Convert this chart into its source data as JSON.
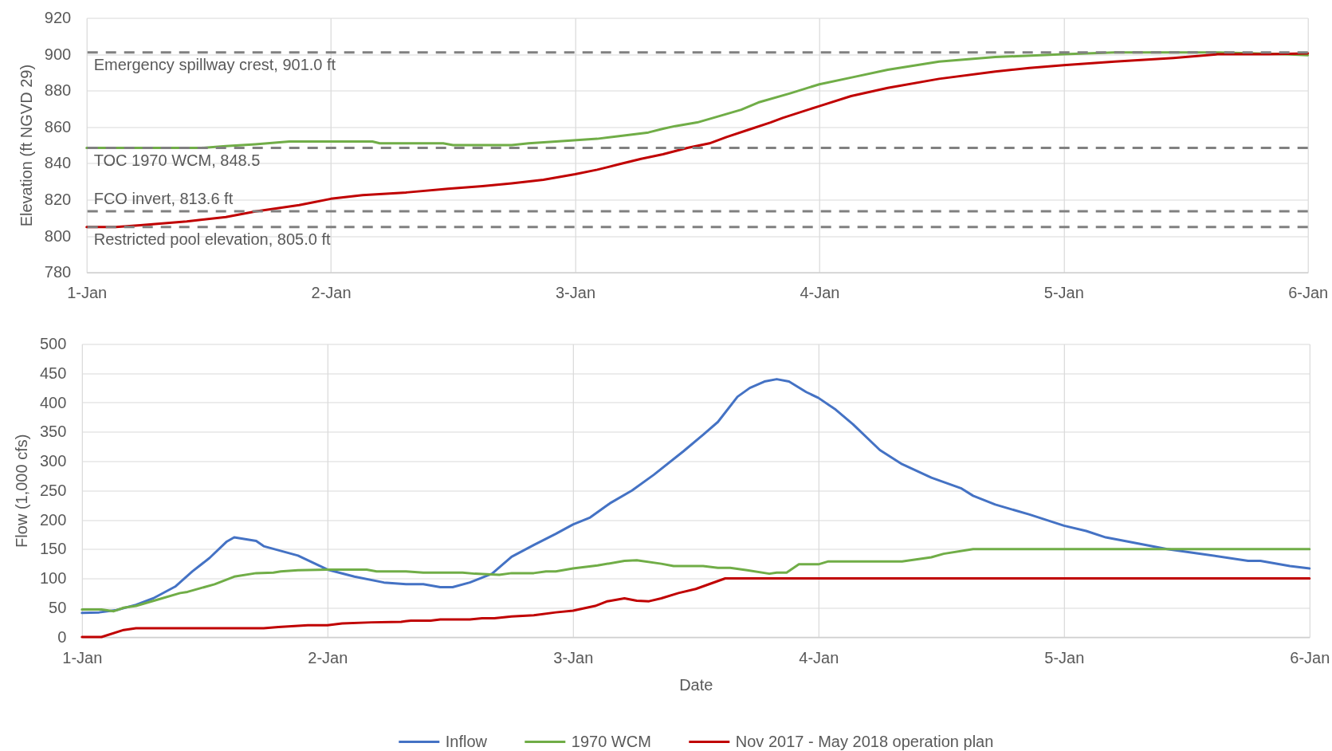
{
  "chart_data": [
    {
      "type": "line",
      "ylabel": "Elevation (ft NGVD 29)",
      "xlim": [
        "2018-01-01",
        "2018-01-06"
      ],
      "xticks": [
        {
          "value": "2018-01-01",
          "label": "1-Jan"
        },
        {
          "value": "2018-01-02",
          "label": "2-Jan"
        },
        {
          "value": "2018-01-03",
          "label": "3-Jan"
        },
        {
          "value": "2018-01-04",
          "label": "4-Jan"
        },
        {
          "value": "2018-01-05",
          "label": "5-Jan"
        },
        {
          "value": "2018-01-06",
          "label": "6-Jan"
        }
      ],
      "ylim": [
        780,
        920
      ],
      "yticks": [
        780,
        800,
        820,
        840,
        860,
        880,
        900,
        920
      ],
      "grid": true,
      "ref_lines": [
        {
          "axis": "y",
          "value": 901.0,
          "label": "Emergency spillway crest, 901.0 ft",
          "color": "#808080",
          "line_style": "dashed"
        },
        {
          "axis": "y",
          "value": 848.5,
          "label": "TOC 1970 WCM, 848.5",
          "color": "#808080",
          "line_style": "dashed"
        },
        {
          "axis": "y",
          "value": 813.6,
          "label": "FCO invert, 813.6 ft",
          "color": "#808080",
          "line_style": "dashed"
        },
        {
          "axis": "y",
          "value": 805.0,
          "label": "Restricted pool elevation, 805.0 ft",
          "color": "#808080",
          "line_style": "dashed"
        }
      ],
      "series": [
        {
          "color": "#70ad47",
          "x": [
            "2018-01-01T00:00",
            "2018-01-01T11:17",
            "2018-01-01T13:41",
            "2018-01-01T16:34",
            "2018-01-01T19:55",
            "2018-01-02T04:05",
            "2018-01-02T04:48",
            "2018-01-02T11:02",
            "2018-01-02T12:00",
            "2018-01-02T17:46",
            "2018-01-02T19:26",
            "2018-01-02T23:17",
            "2018-01-03T02:10",
            "2018-01-03T04:19",
            "2018-01-03T07:12",
            "2018-01-03T08:38",
            "2018-01-03T09:50",
            "2018-01-03T12:00",
            "2018-01-03T14:10",
            "2018-01-03T16:19",
            "2018-01-03T18:00",
            "2018-01-03T21:07",
            "2018-01-04T00:00",
            "2018-01-04T03:22",
            "2018-01-04T06:43",
            "2018-01-04T11:46",
            "2018-01-04T17:17",
            "2018-01-05T00:00",
            "2018-01-05T05:02",
            "2018-01-05T15:07",
            "2018-01-05T21:50",
            "2018-01-06T00:00"
          ],
          "values": [
            848.5,
            848.5,
            849.5,
            850.5,
            852,
            852,
            851,
            851,
            850,
            850,
            851,
            852.5,
            853.5,
            855,
            857,
            859,
            860.5,
            862.5,
            866,
            869.5,
            873.5,
            878.5,
            883.5,
            887.5,
            891.5,
            896,
            898.5,
            900,
            901,
            901,
            900,
            899.5
          ]
        },
        {
          "color": "#c00000",
          "x": [
            "2018-01-01T00:00",
            "2018-01-01T02:53",
            "2018-01-01T05:17",
            "2018-01-01T09:50",
            "2018-01-01T13:41",
            "2018-01-01T16:34",
            "2018-01-01T20:53",
            "2018-01-02T00:00",
            "2018-01-02T03:07",
            "2018-01-02T07:26",
            "2018-01-02T11:31",
            "2018-01-02T14:53",
            "2018-01-02T17:46",
            "2018-01-02T20:53",
            "2018-01-03T00:00",
            "2018-01-03T02:10",
            "2018-01-03T04:19",
            "2018-01-03T06:29",
            "2018-01-03T08:38",
            "2018-01-03T11:02",
            "2018-01-03T13:12",
            "2018-01-03T14:53",
            "2018-01-03T17:02",
            "2018-01-03T19:12",
            "2018-01-03T20:24",
            "2018-01-04T00:00",
            "2018-01-04T03:07",
            "2018-01-04T06:43",
            "2018-01-04T11:46",
            "2018-01-04T17:17",
            "2018-01-04T20:38",
            "2018-01-05T00:00",
            "2018-01-05T05:02",
            "2018-01-05T10:48",
            "2018-01-05T15:07",
            "2018-01-05T20:10",
            "2018-01-06T00:00"
          ],
          "values": [
            805,
            805,
            806,
            808,
            810.5,
            813.5,
            817,
            820.5,
            822.5,
            824,
            826,
            827.5,
            829,
            831,
            834,
            836.5,
            839.5,
            842.5,
            845,
            848.5,
            851,
            854.5,
            858.5,
            862.5,
            865,
            871.5,
            877,
            881.5,
            886.5,
            890.5,
            892.5,
            894,
            896,
            898,
            900,
            900,
            900.5
          ]
        }
      ]
    },
    {
      "type": "line",
      "xlabel": "Date",
      "ylabel": "Flow (1,000 cfs)",
      "xlim": [
        "2018-01-01",
        "2018-01-06"
      ],
      "xticks": [
        {
          "value": "2018-01-01",
          "label": "1-Jan"
        },
        {
          "value": "2018-01-02",
          "label": "2-Jan"
        },
        {
          "value": "2018-01-03",
          "label": "3-Jan"
        },
        {
          "value": "2018-01-04",
          "label": "4-Jan"
        },
        {
          "value": "2018-01-05",
          "label": "5-Jan"
        },
        {
          "value": "2018-01-06",
          "label": "6-Jan"
        }
      ],
      "ylim": [
        0,
        500
      ],
      "yticks": [
        0,
        50,
        100,
        150,
        200,
        250,
        300,
        350,
        400,
        450,
        500
      ],
      "grid": true,
      "legend": "bottom",
      "series": [
        {
          "name": "Inflow",
          "color": "#4472c4",
          "x": [
            "2018-01-01T00:00",
            "2018-01-01T01:41",
            "2018-01-01T03:22",
            "2018-01-01T05:17",
            "2018-01-01T06:58",
            "2018-01-01T09:07",
            "2018-01-01T10:48",
            "2018-01-01T12:29",
            "2018-01-01T14:10",
            "2018-01-01T14:53",
            "2018-01-01T17:02",
            "2018-01-01T17:46",
            "2018-01-01T21:07",
            "2018-01-02T00:00",
            "2018-01-02T02:38",
            "2018-01-02T05:31",
            "2018-01-02T07:41",
            "2018-01-02T09:22",
            "2018-01-02T11:02",
            "2018-01-02T12:14",
            "2018-01-02T13:55",
            "2018-01-02T16:05",
            "2018-01-02T18:00",
            "2018-01-02T20:10",
            "2018-01-02T22:19",
            "2018-01-03T00:00",
            "2018-01-03T01:41",
            "2018-01-03T03:36",
            "2018-01-03T05:46",
            "2018-01-03T07:55",
            "2018-01-03T10:48",
            "2018-01-03T12:43",
            "2018-01-03T14:10",
            "2018-01-03T16:05",
            "2018-01-03T17:17",
            "2018-01-03T18:43",
            "2018-01-03T19:55",
            "2018-01-03T21:07",
            "2018-01-03T22:48",
            "2018-01-04T00:00",
            "2018-01-04T01:41",
            "2018-01-04T03:22",
            "2018-01-04T06:00",
            "2018-01-04T08:10",
            "2018-01-04T11:02",
            "2018-01-04T13:55",
            "2018-01-04T15:07",
            "2018-01-04T17:17",
            "2018-01-04T20:38",
            "2018-01-05T00:00",
            "2018-01-05T02:10",
            "2018-01-05T04:05",
            "2018-01-05T06:14",
            "2018-01-05T10:05",
            "2018-01-05T12:58",
            "2018-01-05T18:00",
            "2018-01-05T19:12",
            "2018-01-05T22:05",
            "2018-01-06T00:00"
          ],
          "values": [
            41,
            42,
            46,
            55,
            66,
            86,
            112,
            135,
            163,
            170,
            164,
            155,
            139,
            115,
            103,
            93,
            90,
            90,
            85,
            85,
            93,
            108,
            137,
            157,
            176,
            192,
            204,
            228,
            250,
            277,
            317,
            345,
            367,
            410,
            425,
            436,
            440,
            436,
            418,
            408,
            388,
            363,
            319,
            295,
            272,
            254,
            241,
            226,
            209,
            190,
            181,
            170,
            163,
            150,
            143,
            130,
            130,
            121,
            117
          ]
        },
        {
          "name": "1970 WCM",
          "color": "#70ad47",
          "x": [
            "2018-01-01T00:00",
            "2018-01-01T01:55",
            "2018-01-01T03:07",
            "2018-01-01T04:05",
            "2018-01-01T05:17",
            "2018-01-01T07:26",
            "2018-01-01T09:36",
            "2018-01-01T10:19",
            "2018-01-01T12:58",
            "2018-01-01T14:53",
            "2018-01-01T17:02",
            "2018-01-01T18:43",
            "2018-01-01T19:26",
            "2018-01-01T21:07",
            "2018-01-02T00:00",
            "2018-01-02T03:50",
            "2018-01-02T04:48",
            "2018-01-02T07:41",
            "2018-01-02T09:22",
            "2018-01-02T13:12",
            "2018-01-02T14:24",
            "2018-01-02T16:48",
            "2018-01-02T18:00",
            "2018-01-02T20:10",
            "2018-01-02T21:22",
            "2018-01-02T22:19",
            "2018-01-03T00:00",
            "2018-01-03T02:24",
            "2018-01-03T05:02",
            "2018-01-03T06:14",
            "2018-01-03T08:38",
            "2018-01-03T09:50",
            "2018-01-03T12:43",
            "2018-01-03T14:10",
            "2018-01-03T15:22",
            "2018-01-03T17:02",
            "2018-01-03T19:12",
            "2018-01-03T19:55",
            "2018-01-03T20:53",
            "2018-01-03T22:05",
            "2018-01-04T00:00",
            "2018-01-04T00:58",
            "2018-01-04T08:10",
            "2018-01-04T11:02",
            "2018-01-04T12:14",
            "2018-01-04T15:07",
            "2018-01-06T00:00"
          ],
          "values": [
            47,
            47,
            44,
            50,
            53,
            64,
            75,
            77,
            90,
            103,
            109,
            110,
            112,
            114,
            115,
            115,
            112,
            112,
            110,
            110,
            108,
            106,
            109,
            109,
            112,
            112,
            117,
            122,
            130,
            131,
            125,
            121,
            121,
            118,
            118,
            114,
            108,
            110,
            110,
            124,
            124,
            129,
            129,
            136,
            142,
            150,
            150
          ]
        },
        {
          "name": "Nov 2017 - May 2018 operation plan",
          "color": "#c00000",
          "x": [
            "2018-01-01T00:00",
            "2018-01-01T01:55",
            "2018-01-01T04:05",
            "2018-01-01T05:17",
            "2018-01-01T17:46",
            "2018-01-01T19:12",
            "2018-01-01T22:05",
            "2018-01-02T00:00",
            "2018-01-02T01:26",
            "2018-01-02T04:19",
            "2018-01-02T07:12",
            "2018-01-02T08:10",
            "2018-01-02T10:05",
            "2018-01-02T11:02",
            "2018-01-02T13:55",
            "2018-01-02T15:07",
            "2018-01-02T16:19",
            "2018-01-02T18:00",
            "2018-01-02T20:10",
            "2018-01-02T22:19",
            "2018-01-03T00:00",
            "2018-01-03T02:10",
            "2018-01-03T03:22",
            "2018-01-03T05:02",
            "2018-01-03T06:14",
            "2018-01-03T07:26",
            "2018-01-03T08:38",
            "2018-01-03T10:19",
            "2018-01-03T12:00",
            "2018-01-03T14:53",
            "2018-01-06T00:00"
          ],
          "values": [
            0,
            0,
            12,
            15,
            15,
            17,
            20,
            20,
            23,
            25,
            26,
            28,
            28,
            30,
            30,
            32,
            32,
            35,
            37,
            42,
            45,
            53,
            61,
            66,
            62,
            61,
            66,
            75,
            82,
            100,
            100
          ]
        }
      ]
    }
  ]
}
